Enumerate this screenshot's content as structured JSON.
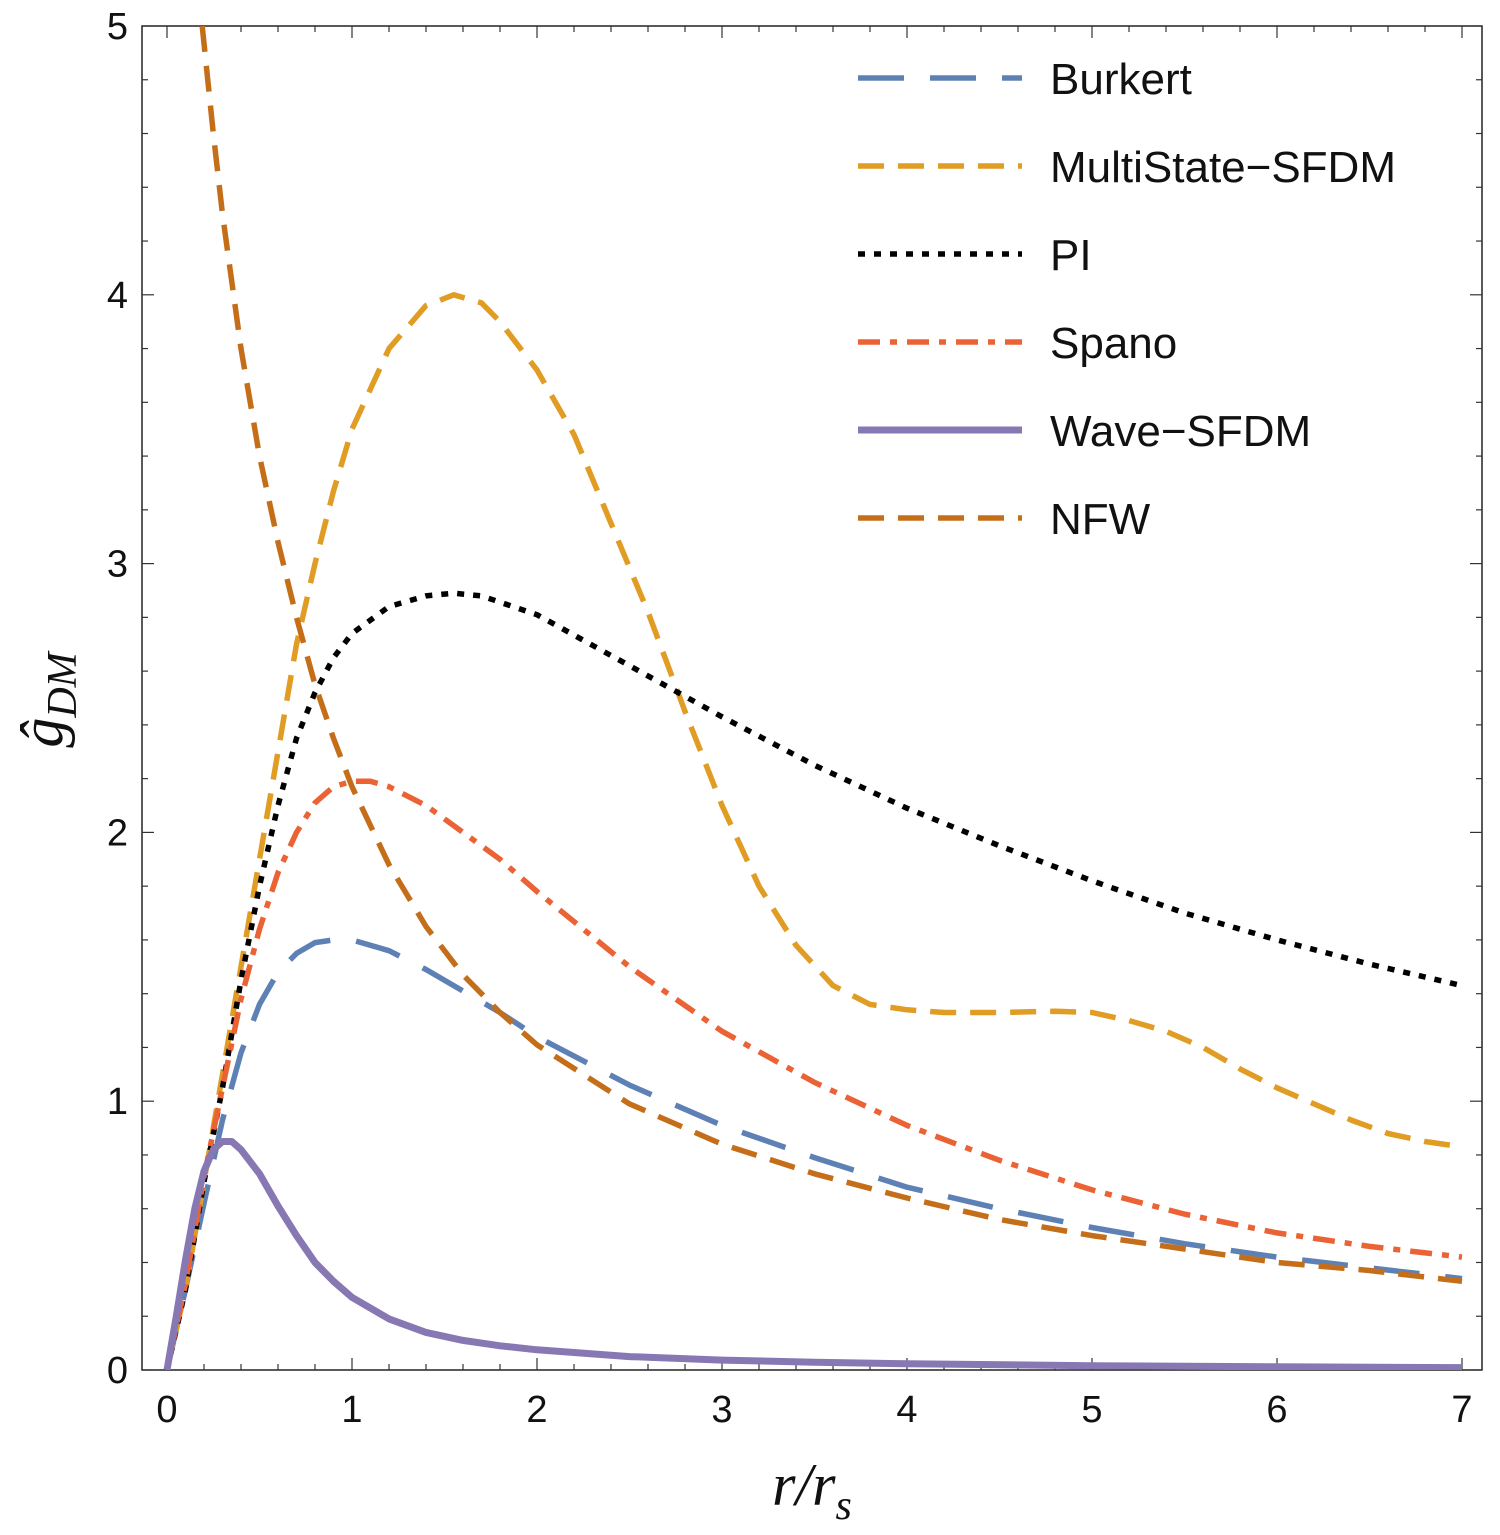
{
  "chart_data": {
    "type": "line",
    "title": "",
    "xlabel": "r/r_s",
    "ylabel": "ĝ_DM",
    "xlim": [
      0,
      7
    ],
    "ylim": [
      0,
      5
    ],
    "x_ticks": [
      0,
      1,
      2,
      3,
      4,
      5,
      6,
      7
    ],
    "y_ticks": [
      0,
      1,
      2,
      3,
      4,
      5
    ],
    "legend_position": "top-right",
    "series": [
      {
        "name": "Burkert",
        "color": "#5e81b5",
        "style": "long-dash",
        "points": [
          [
            0,
            0
          ],
          [
            0.1,
            0.3
          ],
          [
            0.2,
            0.62
          ],
          [
            0.3,
            0.93
          ],
          [
            0.4,
            1.18
          ],
          [
            0.5,
            1.36
          ],
          [
            0.6,
            1.48
          ],
          [
            0.7,
            1.55
          ],
          [
            0.8,
            1.59
          ],
          [
            0.9,
            1.6
          ],
          [
            1.0,
            1.6
          ],
          [
            1.2,
            1.56
          ],
          [
            1.4,
            1.49
          ],
          [
            1.6,
            1.41
          ],
          [
            1.8,
            1.33
          ],
          [
            2.0,
            1.24
          ],
          [
            2.5,
            1.06
          ],
          [
            3.0,
            0.91
          ],
          [
            3.5,
            0.79
          ],
          [
            4.0,
            0.68
          ],
          [
            4.5,
            0.6
          ],
          [
            5.0,
            0.53
          ],
          [
            5.5,
            0.47
          ],
          [
            6.0,
            0.42
          ],
          [
            6.5,
            0.38
          ],
          [
            7.0,
            0.34
          ]
        ]
      },
      {
        "name": "MultiState−SFDM",
        "color": "#e19c24",
        "style": "dash",
        "points": [
          [
            0,
            0
          ],
          [
            0.1,
            0.3
          ],
          [
            0.2,
            0.7
          ],
          [
            0.3,
            1.1
          ],
          [
            0.4,
            1.5
          ],
          [
            0.5,
            1.9
          ],
          [
            0.6,
            2.3
          ],
          [
            0.7,
            2.7
          ],
          [
            0.8,
            3.0
          ],
          [
            0.9,
            3.27
          ],
          [
            1.0,
            3.5
          ],
          [
            1.2,
            3.8
          ],
          [
            1.4,
            3.96
          ],
          [
            1.55,
            4.0
          ],
          [
            1.7,
            3.97
          ],
          [
            1.8,
            3.9
          ],
          [
            2.0,
            3.72
          ],
          [
            2.2,
            3.48
          ],
          [
            2.4,
            3.15
          ],
          [
            2.6,
            2.82
          ],
          [
            2.8,
            2.45
          ],
          [
            3.0,
            2.1
          ],
          [
            3.2,
            1.8
          ],
          [
            3.4,
            1.58
          ],
          [
            3.6,
            1.43
          ],
          [
            3.8,
            1.36
          ],
          [
            4.0,
            1.34
          ],
          [
            4.2,
            1.33
          ],
          [
            4.5,
            1.33
          ],
          [
            4.8,
            1.335
          ],
          [
            5.0,
            1.33
          ],
          [
            5.2,
            1.3
          ],
          [
            5.4,
            1.26
          ],
          [
            5.6,
            1.2
          ],
          [
            5.8,
            1.12
          ],
          [
            6.0,
            1.05
          ],
          [
            6.2,
            0.99
          ],
          [
            6.4,
            0.93
          ],
          [
            6.6,
            0.88
          ],
          [
            6.8,
            0.85
          ],
          [
            7.0,
            0.83
          ]
        ]
      },
      {
        "name": "PI",
        "color": "#000000",
        "style": "dot",
        "points": [
          [
            0,
            0
          ],
          [
            0.1,
            0.3
          ],
          [
            0.2,
            0.7
          ],
          [
            0.3,
            1.05
          ],
          [
            0.4,
            1.45
          ],
          [
            0.5,
            1.8
          ],
          [
            0.6,
            2.1
          ],
          [
            0.7,
            2.35
          ],
          [
            0.8,
            2.52
          ],
          [
            0.9,
            2.65
          ],
          [
            1.0,
            2.74
          ],
          [
            1.2,
            2.84
          ],
          [
            1.4,
            2.88
          ],
          [
            1.55,
            2.89
          ],
          [
            1.7,
            2.88
          ],
          [
            2.0,
            2.81
          ],
          [
            2.5,
            2.62
          ],
          [
            3.0,
            2.43
          ],
          [
            3.5,
            2.25
          ],
          [
            4.0,
            2.09
          ],
          [
            4.5,
            1.95
          ],
          [
            5.0,
            1.82
          ],
          [
            5.5,
            1.7
          ],
          [
            6.0,
            1.6
          ],
          [
            6.5,
            1.51
          ],
          [
            7.0,
            1.43
          ]
        ]
      },
      {
        "name": "Spano",
        "color": "#eb6235",
        "style": "dash-dot",
        "points": [
          [
            0,
            0
          ],
          [
            0.1,
            0.32
          ],
          [
            0.2,
            0.72
          ],
          [
            0.3,
            1.05
          ],
          [
            0.4,
            1.38
          ],
          [
            0.5,
            1.64
          ],
          [
            0.6,
            1.85
          ],
          [
            0.7,
            2.0
          ],
          [
            0.8,
            2.11
          ],
          [
            0.9,
            2.17
          ],
          [
            1.0,
            2.19
          ],
          [
            1.1,
            2.19
          ],
          [
            1.2,
            2.17
          ],
          [
            1.4,
            2.1
          ],
          [
            1.6,
            2.0
          ],
          [
            1.8,
            1.9
          ],
          [
            2.0,
            1.78
          ],
          [
            2.5,
            1.5
          ],
          [
            3.0,
            1.26
          ],
          [
            3.5,
            1.07
          ],
          [
            4.0,
            0.91
          ],
          [
            4.5,
            0.78
          ],
          [
            5.0,
            0.67
          ],
          [
            5.5,
            0.58
          ],
          [
            6.0,
            0.51
          ],
          [
            6.5,
            0.46
          ],
          [
            7.0,
            0.42
          ]
        ]
      },
      {
        "name": "Wave−SFDM",
        "color": "#8778b3",
        "style": "solid",
        "points": [
          [
            0,
            0
          ],
          [
            0.05,
            0.2
          ],
          [
            0.1,
            0.41
          ],
          [
            0.15,
            0.6
          ],
          [
            0.2,
            0.74
          ],
          [
            0.25,
            0.82
          ],
          [
            0.3,
            0.85
          ],
          [
            0.35,
            0.85
          ],
          [
            0.4,
            0.82
          ],
          [
            0.5,
            0.73
          ],
          [
            0.6,
            0.61
          ],
          [
            0.7,
            0.5
          ],
          [
            0.8,
            0.4
          ],
          [
            0.9,
            0.33
          ],
          [
            1.0,
            0.27
          ],
          [
            1.2,
            0.19
          ],
          [
            1.4,
            0.14
          ],
          [
            1.6,
            0.11
          ],
          [
            1.8,
            0.09
          ],
          [
            2.0,
            0.075
          ],
          [
            2.5,
            0.05
          ],
          [
            3.0,
            0.037
          ],
          [
            3.5,
            0.029
          ],
          [
            4.0,
            0.023
          ],
          [
            5.0,
            0.016
          ],
          [
            6.0,
            0.012
          ],
          [
            7.0,
            0.009
          ]
        ]
      },
      {
        "name": "NFW",
        "color": "#c56e1a",
        "style": "dash",
        "points": [
          [
            0.19,
            5.0
          ],
          [
            0.25,
            4.6
          ],
          [
            0.3,
            4.3
          ],
          [
            0.4,
            3.8
          ],
          [
            0.5,
            3.4
          ],
          [
            0.6,
            3.08
          ],
          [
            0.7,
            2.8
          ],
          [
            0.8,
            2.55
          ],
          [
            0.9,
            2.35
          ],
          [
            1.0,
            2.17
          ],
          [
            1.2,
            1.88
          ],
          [
            1.4,
            1.65
          ],
          [
            1.6,
            1.47
          ],
          [
            1.8,
            1.33
          ],
          [
            2.0,
            1.21
          ],
          [
            2.5,
            0.99
          ],
          [
            3.0,
            0.84
          ],
          [
            3.5,
            0.73
          ],
          [
            4.0,
            0.64
          ],
          [
            4.5,
            0.56
          ],
          [
            5.0,
            0.5
          ],
          [
            5.5,
            0.45
          ],
          [
            6.0,
            0.4
          ],
          [
            6.5,
            0.37
          ],
          [
            7.0,
            0.33
          ]
        ]
      }
    ]
  }
}
